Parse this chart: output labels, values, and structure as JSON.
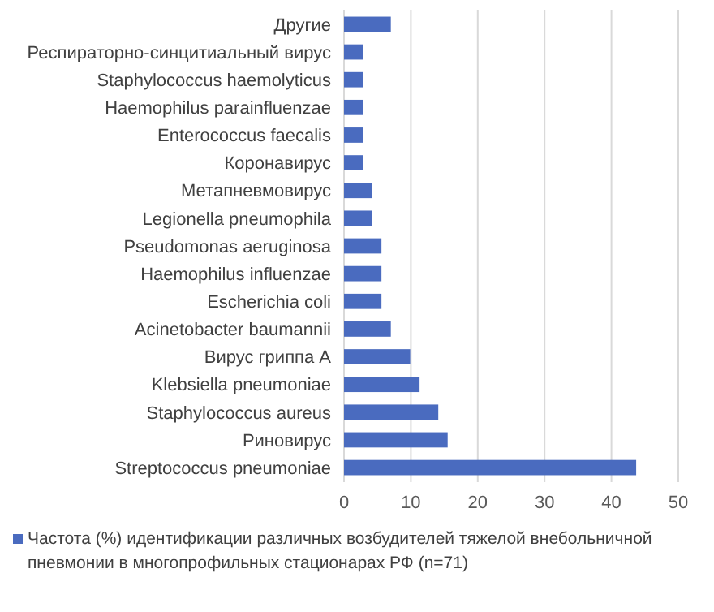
{
  "chart_data": {
    "type": "bar",
    "orientation": "horizontal",
    "categories": [
      "Другие",
      "Респираторно-синцитиальный вирус",
      "Staphylococcus haemolyticus",
      "Haemophilus parainfluenzae",
      "Enterococcus faecalis",
      "Коронавирус",
      "Метапневмовирус",
      "Legionella pneumophila",
      "Pseudomonas aeruginosa",
      "Haemophilus influenzae",
      "Escherichia coli",
      "Acinetobacter baumannii",
      "Вирус гриппа A",
      "Klebsiella pneumoniae",
      "Staphylococcus aureus",
      "Риновирус",
      "Streptococcus pneumoniae"
    ],
    "series": [
      {
        "name": "Частота (%) идентификации различных возбудителей тяжелой внебольничной пневмонии в многопрофильных стационарах РФ (n=71)",
        "color": "#4a6bbf",
        "values": [
          7.0,
          2.8,
          2.8,
          2.8,
          2.8,
          2.8,
          4.2,
          4.2,
          5.6,
          5.6,
          5.6,
          7.0,
          9.9,
          11.3,
          14.1,
          15.5,
          43.7
        ]
      }
    ],
    "xlim": [
      0,
      50
    ],
    "xticks": [
      0,
      10,
      20,
      30,
      40,
      50
    ],
    "grid": "x",
    "legend": "bottom"
  }
}
